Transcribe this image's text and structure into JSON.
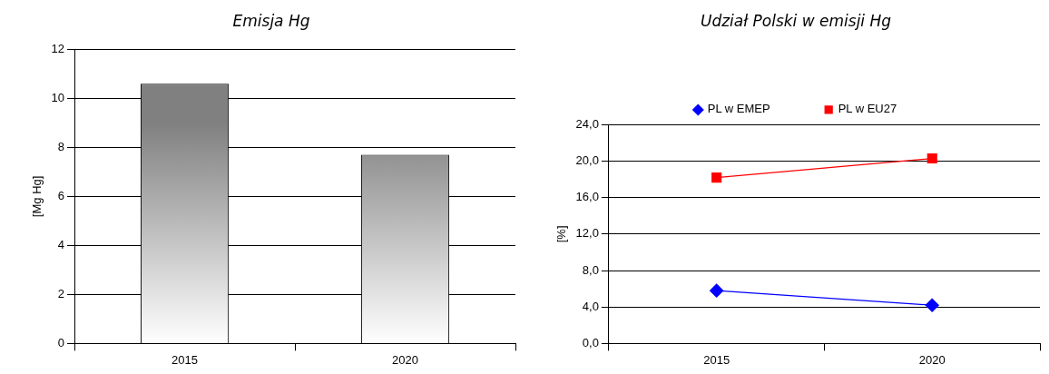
{
  "chart_data": [
    {
      "type": "bar",
      "title": "Emisja Hg",
      "ylabel": "[Mg Hg]",
      "categories": [
        "2015",
        "2020"
      ],
      "values": [
        10.6,
        7.7
      ],
      "color": "#808080",
      "ylim": [
        0,
        12
      ],
      "yticks": [
        0,
        2,
        4,
        6,
        8,
        10,
        12
      ],
      "grid": "y"
    },
    {
      "type": "line",
      "title": "Udział Polski w emisji Hg",
      "ylabel": "[%]",
      "categories": [
        "2015",
        "2020"
      ],
      "series": [
        {
          "name": "PL w EMEP",
          "color": "#0000ff",
          "values": [
            5.8,
            4.2
          ],
          "marker": "diamond"
        },
        {
          "name": "PL w EU27",
          "color": "#ff0000",
          "values": [
            18.2,
            20.3
          ],
          "marker": "square"
        }
      ],
      "ylim": [
        0,
        24
      ],
      "yticks": [
        {
          "value": 0,
          "label": "0,0"
        },
        {
          "value": 4,
          "label": "4,0"
        },
        {
          "value": 8,
          "label": "8,0"
        },
        {
          "value": 12,
          "label": "12,0"
        },
        {
          "value": 16,
          "label": "16,0"
        },
        {
          "value": 20,
          "label": "20,0"
        },
        {
          "value": 24,
          "label": "24,0"
        }
      ],
      "grid": "y",
      "legend": "top"
    }
  ]
}
